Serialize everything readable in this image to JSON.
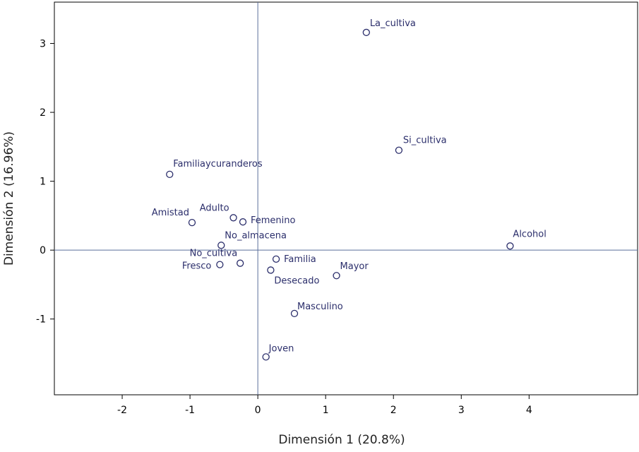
{
  "chart_data": {
    "type": "scatter",
    "title": "",
    "xlabel": "Dimensión 1 (20.8%)",
    "ylabel": "Dimensión 2 (16.96%)",
    "xlim": [
      -3.0,
      5.6
    ],
    "ylim": [
      -2.1,
      3.6
    ],
    "xticks": [
      -2,
      -1,
      0,
      1,
      2,
      3,
      4
    ],
    "yticks": [
      -1,
      0,
      1,
      2,
      3
    ],
    "reference_lines": {
      "x": 0,
      "y": 0
    },
    "grid": false,
    "legend": "none",
    "colors": {
      "frame": "#000000",
      "reference_line": "#5a6f9b",
      "marker": "#2b2e6b",
      "label": "#2b2e6b"
    },
    "points": [
      {
        "label": "La_cultiva",
        "x": 1.6,
        "y": 3.16
      },
      {
        "label": "Si_cultiva",
        "x": 2.08,
        "y": 1.45
      },
      {
        "label": "Familiaycuranderos",
        "x": -1.3,
        "y": 1.1
      },
      {
        "label": "Amistad",
        "x": -0.97,
        "y": 0.4
      },
      {
        "label": "Adulto",
        "x": -0.36,
        "y": 0.47
      },
      {
        "label": "Femenino",
        "x": -0.22,
        "y": 0.41
      },
      {
        "label": "No_almacena",
        "x": -0.54,
        "y": 0.07
      },
      {
        "label": "No_cultiva",
        "x": -0.26,
        "y": -0.19
      },
      {
        "label": "Fresco",
        "x": -0.56,
        "y": -0.21
      },
      {
        "label": "Familia",
        "x": 0.27,
        "y": -0.13
      },
      {
        "label": "Desecado",
        "x": 0.19,
        "y": -0.29
      },
      {
        "label": "Mayor",
        "x": 1.16,
        "y": -0.37
      },
      {
        "label": "Alcohol",
        "x": 3.72,
        "y": 0.06
      },
      {
        "label": "Masculino",
        "x": 0.54,
        "y": -0.92
      },
      {
        "label": "Joven",
        "x": 0.12,
        "y": -1.55
      }
    ]
  }
}
